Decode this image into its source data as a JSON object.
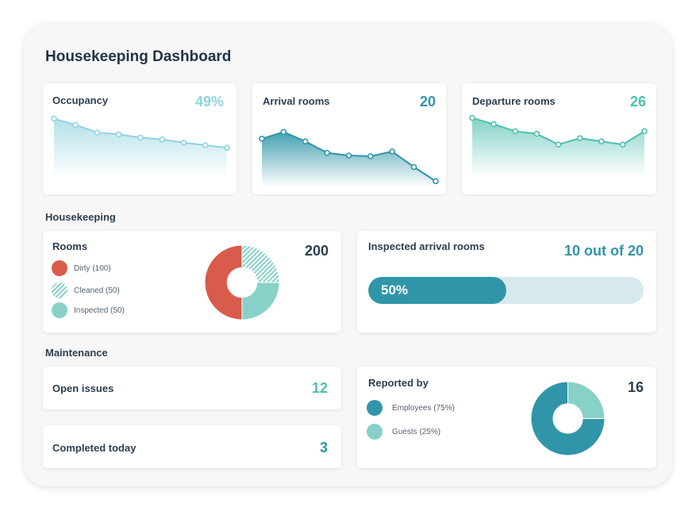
{
  "title": "Housekeeping Dashboard",
  "colors": {
    "occupancy": "#8fd3e0",
    "arrival": "#2f95a8",
    "departure": "#4dbfae",
    "dirty": "#d95b4b",
    "cleaned": "#88d1c8",
    "inspected": "#88d1c8",
    "employees": "#3195a9",
    "guests": "#88d1c8"
  },
  "kpis": [
    {
      "label": "Occupancy",
      "value": "49%",
      "series": [
        92,
        82,
        70,
        67,
        62,
        59,
        54,
        50,
        46
      ]
    },
    {
      "label": "Arrival rooms",
      "value": "20",
      "series": [
        72,
        82,
        68,
        51,
        47,
        46,
        53,
        30,
        9
      ]
    },
    {
      "label": "Departure rooms",
      "value": "26",
      "series": [
        93,
        83,
        72,
        68,
        51,
        61,
        56,
        51,
        72
      ]
    }
  ],
  "housekeeping": {
    "label": "Housekeeping",
    "rooms": {
      "label": "Rooms",
      "total": "200",
      "legend": [
        {
          "label": "Dirty (100)",
          "value": 100,
          "pattern": "solid"
        },
        {
          "label": "Cleaned (50)",
          "value": 50,
          "pattern": "hatched"
        },
        {
          "label": "Inspected (50)",
          "value": 50,
          "pattern": "solid"
        }
      ]
    },
    "inspected": {
      "label": "Inspected arrival rooms",
      "value": "10 out of 20",
      "percent_label": "50%",
      "progress": 0.5
    }
  },
  "maintenance": {
    "label": "Maintenance",
    "open_issues": {
      "label": "Open issues",
      "value": "12"
    },
    "completed": {
      "label": "Completed today",
      "value": "3"
    },
    "reported": {
      "label": "Reported by",
      "total": "16",
      "legend": [
        {
          "label": "Employees (75%)",
          "value": 75
        },
        {
          "label": "Guests (25%)",
          "value": 25
        }
      ]
    }
  }
}
